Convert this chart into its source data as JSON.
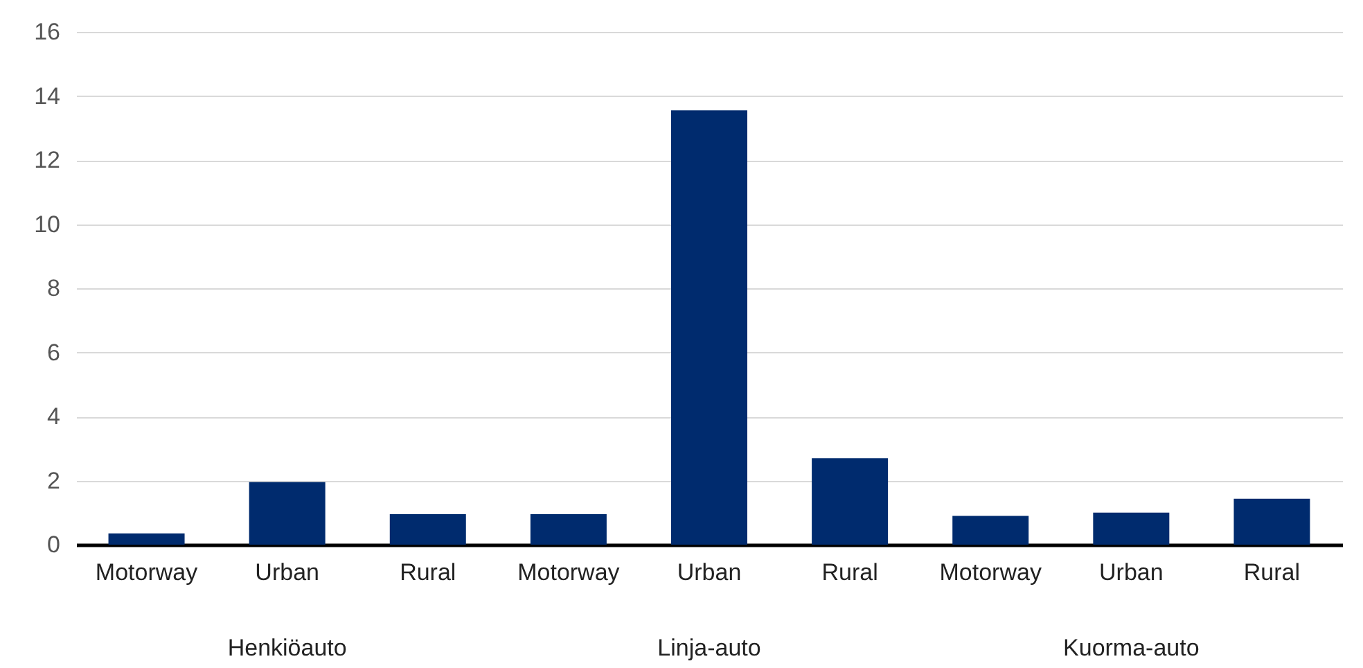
{
  "chart_data": {
    "type": "bar",
    "categories": [
      "Motorway",
      "Urban",
      "Rural",
      "Motorway",
      "Urban",
      "Rural",
      "Motorway",
      "Urban",
      "Rural"
    ],
    "values": [
      0.35,
      1.95,
      0.95,
      0.95,
      13.55,
      2.7,
      0.9,
      1.0,
      1.43
    ],
    "color": "#002b6e",
    "ylim": [
      0,
      16
    ],
    "yticks": [
      0,
      2,
      4,
      6,
      8,
      10,
      12,
      14,
      16
    ],
    "grid": "y",
    "annotations": [
      "Henkiöauto",
      "Linja-auto",
      "Kuorma-auto"
    ]
  }
}
